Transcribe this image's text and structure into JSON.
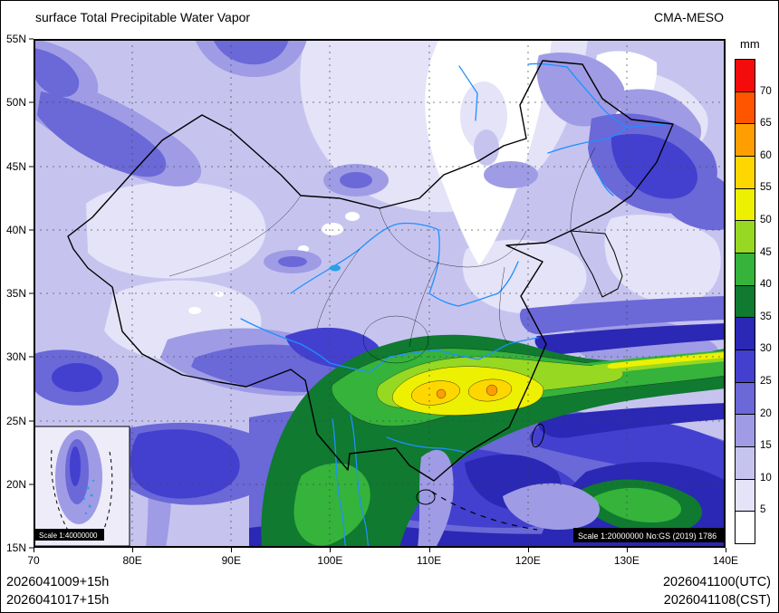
{
  "header": {
    "title": "surface Total Precipitable Water Vapor",
    "model": "CMA-MESO"
  },
  "colorbar": {
    "unit": "mm",
    "levels_mm": [
      5,
      10,
      15,
      20,
      25,
      30,
      35,
      40,
      45,
      50,
      55,
      60,
      65,
      70
    ],
    "tick_labels_top_to_bottom": [
      "70",
      "65",
      "60",
      "55",
      "50",
      "45",
      "40",
      "35",
      "30",
      "25",
      "20",
      "15",
      "10",
      "5"
    ],
    "palette_low_to_high": [
      "#ffffff",
      "#e4e3f8",
      "#c6c4ef",
      "#9f9ce5",
      "#6b68d8",
      "#4340cf",
      "#2a28b4",
      "#0f7a30",
      "#35b33b",
      "#96d822",
      "#edf000",
      "#ffd700",
      "#ff9e00",
      "#ff5500",
      "#f40b0b"
    ]
  },
  "axes": {
    "x_tick_labels": [
      "70",
      "80E",
      "90E",
      "100E",
      "110E",
      "120E",
      "130E",
      "140E"
    ],
    "y_tick_labels_top_to_bottom": [
      "55N",
      "50N",
      "45N",
      "40N",
      "35N",
      "30N",
      "25N",
      "20N",
      "15N"
    ]
  },
  "map": {
    "scale_note_main": "Scale 1:20000000 No:GS (2019) 1786",
    "scale_note_inset": "Scale 1:40000000"
  },
  "footer": {
    "left_line1": "2026041009+15h",
    "left_line2": "2026041017+15h",
    "right_line1": "2026041100(UTC)",
    "right_line2": "2026041108(CST)"
  }
}
